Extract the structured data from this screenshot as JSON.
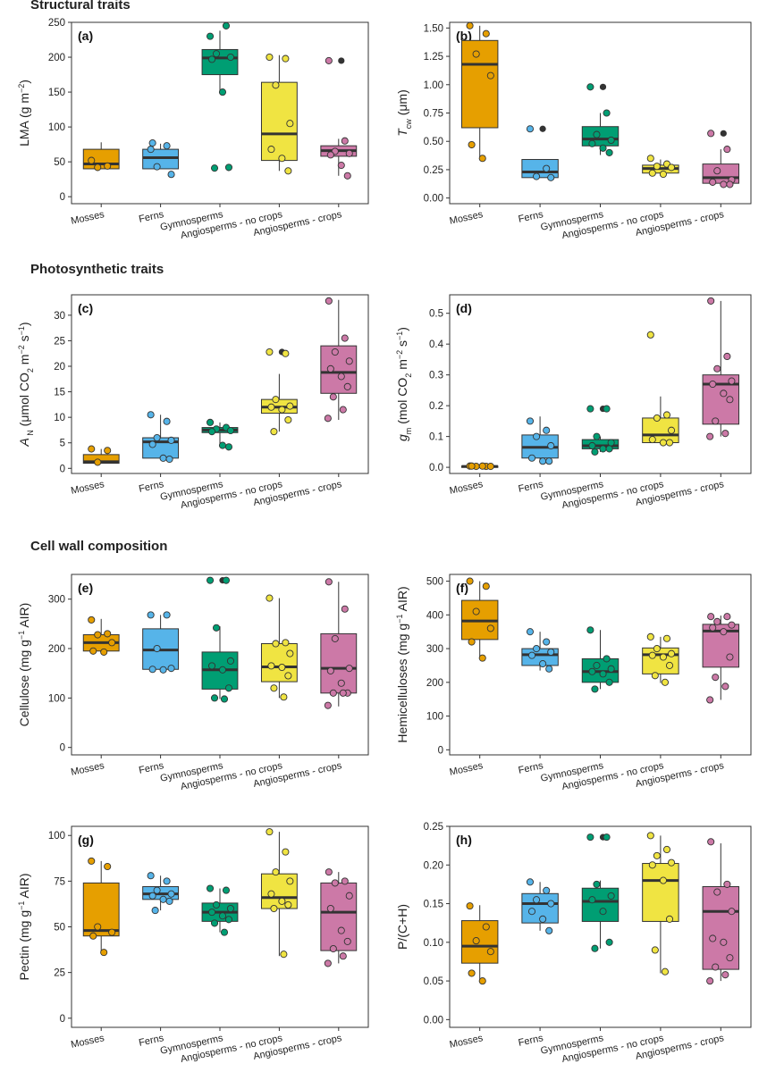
{
  "sections": [
    {
      "title": "Structural traits"
    },
    {
      "title": "Photosynthetic traits"
    },
    {
      "title": "Cell wall composition"
    }
  ],
  "colors": {
    "Mosses": "#E69F00",
    "Ferns": "#56B4E9",
    "Gymnosperms": "#009E73",
    "Angiosperms - no crops": "#F0E442",
    "Angiosperms - crops": "#CC79A7",
    "outlier": "#333333",
    "axis": "#333333"
  },
  "chart_data": [
    {
      "panel": "(a)",
      "type": "box",
      "ylabel_parts": [
        {
          "t": "LMA (g m"
        },
        {
          "t": "−2",
          "sup": true
        },
        {
          "t": ")"
        }
      ],
      "ylim": [
        -10,
        250
      ],
      "yticks": [
        0,
        50,
        100,
        150,
        200,
        250
      ],
      "ytick_labels": [
        "0",
        "50",
        "100",
        "150",
        "200",
        "250"
      ],
      "categories": [
        "Mosses",
        "Ferns",
        "Gymnosperms",
        "Angiosperms - no crops",
        "Angiosperms - crops"
      ],
      "boxes": [
        {
          "q1": 40,
          "median": 47,
          "q3": 68,
          "wlo": 40,
          "whi": 78
        },
        {
          "q1": 40,
          "median": 56,
          "q3": 68,
          "wlo": 40,
          "whi": 76
        },
        {
          "q1": 175,
          "median": 199,
          "q3": 211,
          "wlo": 148,
          "whi": 238
        },
        {
          "q1": 52,
          "median": 90,
          "q3": 164,
          "wlo": 37,
          "whi": 203
        },
        {
          "q1": 58,
          "median": 66,
          "q3": 73,
          "wlo": 30,
          "whi": 83
        }
      ],
      "points": [
        [
          52,
          44,
          42
        ],
        [
          68,
          73,
          43,
          32,
          77
        ],
        [
          230,
          245,
          205,
          200,
          197,
          150,
          42,
          41
        ],
        [
          200,
          198,
          160,
          105,
          68,
          55,
          37
        ],
        [
          195,
          80,
          65,
          62,
          60,
          45,
          30
        ]
      ],
      "outliers": [
        [],
        [],
        [],
        [],
        [
          195
        ]
      ]
    },
    {
      "panel": "(b)",
      "type": "box",
      "ylabel_parts": [
        {
          "t": "T",
          "italic": true
        },
        {
          "t": "cw",
          "sub": true
        },
        {
          "t": " (μm)"
        }
      ],
      "ylim": [
        -0.05,
        1.55
      ],
      "yticks": [
        0,
        0.25,
        0.5,
        0.75,
        1.0,
        1.25,
        1.5
      ],
      "ytick_labels": [
        "0.00",
        "0.25",
        "0.50",
        "0.75",
        "1.00",
        "1.25",
        "1.50"
      ],
      "categories": [
        "Mosses",
        "Ferns",
        "Gymnosperms",
        "Angiosperms - no crops",
        "Angiosperms - crops"
      ],
      "boxes": [
        {
          "q1": 0.62,
          "median": 1.18,
          "q3": 1.39,
          "wlo": 0.35,
          "whi": 1.52
        },
        {
          "q1": 0.18,
          "median": 0.23,
          "q3": 0.34,
          "wlo": 0.18,
          "whi": 0.34
        },
        {
          "q1": 0.46,
          "median": 0.52,
          "q3": 0.63,
          "wlo": 0.38,
          "whi": 0.75
        },
        {
          "q1": 0.22,
          "median": 0.26,
          "q3": 0.29,
          "wlo": 0.2,
          "whi": 0.34
        },
        {
          "q1": 0.13,
          "median": 0.18,
          "q3": 0.3,
          "wlo": 0.12,
          "whi": 0.43
        }
      ],
      "points": [
        [
          1.52,
          1.45,
          1.27,
          1.08,
          0.47,
          0.35
        ],
        [
          0.61,
          0.26,
          0.19,
          0.18
        ],
        [
          0.98,
          0.75,
          0.56,
          0.51,
          0.48,
          0.44,
          0.4
        ],
        [
          0.35,
          0.3,
          0.28,
          0.27,
          0.22,
          0.21
        ],
        [
          0.57,
          0.43,
          0.24,
          0.16,
          0.14,
          0.12,
          0.12
        ]
      ],
      "outliers": [
        [],
        [
          0.61
        ],
        [
          0.98
        ],
        [],
        [
          0.57
        ]
      ]
    },
    {
      "panel": "(c)",
      "type": "box",
      "ylabel_parts": [
        {
          "t": "A",
          "italic": true
        },
        {
          "t": " N",
          "sub": true
        },
        {
          "t": " (μmol CO"
        },
        {
          "t": "2",
          "sub": true
        },
        {
          "t": " m"
        },
        {
          "t": "−2",
          "sup": true
        },
        {
          "t": " s"
        },
        {
          "t": "−1",
          "sup": true
        },
        {
          "t": ")"
        }
      ],
      "ylim": [
        -1,
        34
      ],
      "yticks": [
        0,
        5,
        10,
        15,
        20,
        25,
        30
      ],
      "ytick_labels": [
        "0",
        "5",
        "10",
        "15",
        "20",
        "25",
        "30"
      ],
      "categories": [
        "Mosses",
        "Ferns",
        "Gymnosperms",
        "Angiosperms - no crops",
        "Angiosperms - crops"
      ],
      "boxes": [
        {
          "q1": 1.0,
          "median": 1.3,
          "q3": 2.7,
          "wlo": 1.0,
          "whi": 3.8
        },
        {
          "q1": 2.0,
          "median": 5.2,
          "q3": 6.0,
          "wlo": 1.8,
          "whi": 10.5
        },
        {
          "q1": 7.0,
          "median": 7.5,
          "q3": 8.0,
          "wlo": 4.2,
          "whi": 9.0
        },
        {
          "q1": 10.8,
          "median": 12.0,
          "q3": 13.5,
          "wlo": 7.2,
          "whi": 18.5
        },
        {
          "q1": 14.7,
          "median": 18.8,
          "q3": 24.0,
          "wlo": 9.5,
          "whi": 33.0
        }
      ],
      "points": [
        [
          3.8,
          3.5,
          1.2
        ],
        [
          10.5,
          9.2,
          6.0,
          5.5,
          4.7,
          2.0,
          1.8
        ],
        [
          9.0,
          8.0,
          7.7,
          7.4,
          7.2,
          4.5,
          4.2
        ],
        [
          22.8,
          22.5,
          13.5,
          12.2,
          12.0,
          11.5,
          9.5,
          7.2
        ],
        [
          32.8,
          25.5,
          22.8,
          21.0,
          19.5,
          18.0,
          16.0,
          14.0,
          11.5,
          9.8
        ]
      ],
      "outliers": [
        [],
        [],
        [],
        [
          22.8
        ],
        []
      ]
    },
    {
      "panel": "(d)",
      "type": "box",
      "ylabel_parts": [
        {
          "t": "g",
          "italic": true
        },
        {
          "t": "m",
          "sub": true
        },
        {
          "t": " (mol CO"
        },
        {
          "t": "2",
          "sub": true
        },
        {
          "t": " m"
        },
        {
          "t": "−2",
          "sup": true
        },
        {
          "t": " s"
        },
        {
          "t": "−1",
          "sup": true
        },
        {
          "t": ")"
        }
      ],
      "ylim": [
        -0.02,
        0.56
      ],
      "yticks": [
        0,
        0.1,
        0.2,
        0.3,
        0.4,
        0.5
      ],
      "ytick_labels": [
        "0.0",
        "0.1",
        "0.2",
        "0.3",
        "0.4",
        "0.5"
      ],
      "categories": [
        "Mosses",
        "Ferns",
        "Gymnosperms",
        "Angiosperms - no crops",
        "Angiosperms - crops"
      ],
      "boxes": [
        {
          "q1": 0.002,
          "median": 0.003,
          "q3": 0.004,
          "wlo": 0.001,
          "whi": 0.005
        },
        {
          "q1": 0.03,
          "median": 0.065,
          "q3": 0.105,
          "wlo": 0.02,
          "whi": 0.165
        },
        {
          "q1": 0.06,
          "median": 0.07,
          "q3": 0.09,
          "wlo": 0.05,
          "whi": 0.1
        },
        {
          "q1": 0.08,
          "median": 0.105,
          "q3": 0.16,
          "wlo": 0.075,
          "whi": 0.23
        },
        {
          "q1": 0.14,
          "median": 0.27,
          "q3": 0.3,
          "wlo": 0.1,
          "whi": 0.54
        }
      ],
      "points": [
        [
          0.004,
          0.003,
          0.003,
          0.003,
          0.004,
          0.004
        ],
        [
          0.15,
          0.12,
          0.1,
          0.07,
          0.03,
          0.02,
          0.02
        ],
        [
          0.19,
          0.19,
          0.1,
          0.08,
          0.07,
          0.06,
          0.06,
          0.05
        ],
        [
          0.43,
          0.17,
          0.16,
          0.12,
          0.09,
          0.08,
          0.08
        ],
        [
          0.54,
          0.36,
          0.32,
          0.28,
          0.27,
          0.24,
          0.22,
          0.15,
          0.11,
          0.1
        ]
      ],
      "outliers": [
        [],
        [],
        [
          0.19
        ],
        [],
        []
      ]
    },
    {
      "panel": "(e)",
      "type": "box",
      "ylabel_parts": [
        {
          "t": "Cellulose (mg g"
        },
        {
          "t": "−1",
          "sup": true
        },
        {
          "t": " AIR)"
        }
      ],
      "ylim": [
        -15,
        350
      ],
      "yticks": [
        0,
        100,
        200,
        300
      ],
      "ytick_labels": [
        "0",
        "100",
        "200",
        "300"
      ],
      "categories": [
        "Mosses",
        "Ferns",
        "Gymnosperms",
        "Angiosperms - no crops",
        "Angiosperms - crops"
      ],
      "boxes": [
        {
          "q1": 195,
          "median": 212,
          "q3": 228,
          "wlo": 192,
          "whi": 260
        },
        {
          "q1": 158,
          "median": 197,
          "q3": 240,
          "wlo": 155,
          "whi": 268
        },
        {
          "q1": 118,
          "median": 157,
          "q3": 193,
          "wlo": 98,
          "whi": 245
        },
        {
          "q1": 133,
          "median": 163,
          "q3": 210,
          "wlo": 100,
          "whi": 302
        },
        {
          "q1": 110,
          "median": 160,
          "q3": 230,
          "wlo": 83,
          "whi": 335
        }
      ],
      "points": [
        [
          258,
          230,
          228,
          212,
          195,
          193
        ],
        [
          268,
          268,
          200,
          160,
          158,
          157
        ],
        [
          338,
          338,
          242,
          175,
          165,
          157,
          120,
          100,
          98
        ],
        [
          302,
          212,
          210,
          190,
          165,
          162,
          145,
          120,
          102
        ],
        [
          335,
          280,
          220,
          160,
          155,
          130,
          110,
          110,
          110,
          85
        ]
      ],
      "outliers": [
        [],
        [],
        [
          338
        ],
        [],
        []
      ]
    },
    {
      "panel": "(f)",
      "type": "box",
      "ylabel_parts": [
        {
          "t": "Hemicelluloses (mg g"
        },
        {
          "t": "−1",
          "sup": true
        },
        {
          "t": " AIR)"
        }
      ],
      "ylim": [
        -15,
        520
      ],
      "yticks": [
        0,
        100,
        200,
        300,
        400,
        500
      ],
      "ytick_labels": [
        "0",
        "100",
        "200",
        "300",
        "400",
        "500"
      ],
      "categories": [
        "Mosses",
        "Ferns",
        "Gymnosperms",
        "Angiosperms - no crops",
        "Angiosperms - crops"
      ],
      "boxes": [
        {
          "q1": 327,
          "median": 382,
          "q3": 443,
          "wlo": 270,
          "whi": 500
        },
        {
          "q1": 250,
          "median": 282,
          "q3": 300,
          "wlo": 235,
          "whi": 350
        },
        {
          "q1": 200,
          "median": 232,
          "q3": 270,
          "wlo": 180,
          "whi": 355
        },
        {
          "q1": 225,
          "median": 282,
          "q3": 302,
          "wlo": 198,
          "whi": 335
        },
        {
          "q1": 245,
          "median": 352,
          "q3": 372,
          "wlo": 148,
          "whi": 398
        }
      ],
      "points": [
        [
          500,
          485,
          410,
          360,
          320,
          272
        ],
        [
          350,
          320,
          300,
          290,
          280,
          255,
          240
        ],
        [
          355,
          270,
          250,
          240,
          232,
          225,
          200,
          180
        ],
        [
          335,
          330,
          300,
          285,
          280,
          275,
          250,
          220,
          200
        ],
        [
          395,
          395,
          380,
          370,
          362,
          350,
          275,
          215,
          188,
          148
        ]
      ],
      "outliers": [
        [],
        [],
        [],
        [],
        []
      ]
    },
    {
      "panel": "(g)",
      "type": "box",
      "ylabel_parts": [
        {
          "t": "Pectin (mg g"
        },
        {
          "t": "−1",
          "sup": true
        },
        {
          "t": " AIR)"
        }
      ],
      "ylim": [
        -5,
        105
      ],
      "yticks": [
        0,
        25,
        50,
        75,
        100
      ],
      "ytick_labels": [
        "0",
        "25",
        "50",
        "75",
        "100"
      ],
      "categories": [
        "Mosses",
        "Ferns",
        "Gymnosperms",
        "Angiosperms - no crops",
        "Angiosperms - crops"
      ],
      "boxes": [
        {
          "q1": 45,
          "median": 48,
          "q3": 74,
          "wlo": 36,
          "whi": 86
        },
        {
          "q1": 65,
          "median": 68,
          "q3": 72,
          "wlo": 59,
          "whi": 78
        },
        {
          "q1": 53,
          "median": 58,
          "q3": 63,
          "wlo": 47,
          "whi": 71
        },
        {
          "q1": 60,
          "median": 66,
          "q3": 79,
          "wlo": 34,
          "whi": 102
        },
        {
          "q1": 37,
          "median": 58,
          "q3": 74,
          "wlo": 30,
          "whi": 80
        }
      ],
      "points": [
        [
          86,
          83,
          50,
          47,
          45,
          36
        ],
        [
          78,
          75,
          70,
          68,
          67,
          65,
          64,
          59
        ],
        [
          71,
          70,
          62,
          60,
          58,
          56,
          54,
          52,
          47
        ],
        [
          102,
          91,
          80,
          75,
          68,
          64,
          62,
          60,
          35
        ],
        [
          80,
          75,
          74,
          67,
          60,
          48,
          42,
          38,
          34,
          30
        ]
      ],
      "outliers": [
        [],
        [],
        [],
        [],
        []
      ]
    },
    {
      "panel": "(h)",
      "type": "box",
      "ylabel_parts": [
        {
          "t": "P/(C+H)"
        }
      ],
      "ylim": [
        -0.01,
        0.25
      ],
      "yticks": [
        0,
        0.05,
        0.1,
        0.15,
        0.2,
        0.25
      ],
      "ytick_labels": [
        "0.00",
        "0.05",
        "0.10",
        "0.15",
        "0.20",
        "0.25"
      ],
      "categories": [
        "Mosses",
        "Ferns",
        "Gymnosperms",
        "Angiosperms - no crops",
        "Angiosperms - crops"
      ],
      "boxes": [
        {
          "q1": 0.073,
          "median": 0.095,
          "q3": 0.128,
          "wlo": 0.05,
          "whi": 0.148
        },
        {
          "q1": 0.125,
          "median": 0.15,
          "q3": 0.163,
          "wlo": 0.115,
          "whi": 0.178
        },
        {
          "q1": 0.127,
          "median": 0.153,
          "q3": 0.17,
          "wlo": 0.092,
          "whi": 0.18
        },
        {
          "q1": 0.127,
          "median": 0.18,
          "q3": 0.202,
          "wlo": 0.06,
          "whi": 0.238
        },
        {
          "q1": 0.065,
          "median": 0.14,
          "q3": 0.172,
          "wlo": 0.05,
          "whi": 0.228
        }
      ],
      "points": [
        [
          0.147,
          0.12,
          0.102,
          0.088,
          0.06,
          0.05
        ],
        [
          0.178,
          0.167,
          0.155,
          0.15,
          0.14,
          0.13,
          0.115
        ],
        [
          0.236,
          0.236,
          0.175,
          0.16,
          0.155,
          0.14,
          0.1,
          0.092
        ],
        [
          0.238,
          0.22,
          0.212,
          0.203,
          0.2,
          0.18,
          0.13,
          0.09,
          0.062
        ],
        [
          0.23,
          0.175,
          0.165,
          0.14,
          0.105,
          0.1,
          0.08,
          0.068,
          0.058,
          0.05
        ]
      ],
      "outliers": [
        [],
        [],
        [
          0.236
        ],
        [],
        []
      ]
    }
  ]
}
